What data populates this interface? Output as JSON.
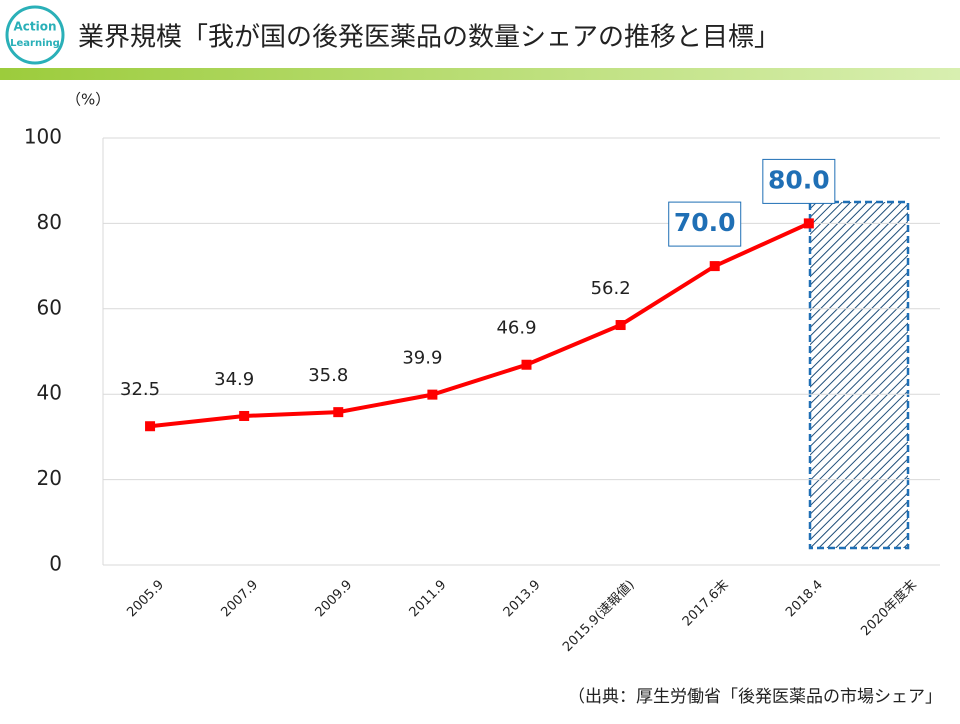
{
  "header": {
    "logo": [
      "Action",
      "Learning"
    ],
    "title": "業界規模「我が国の後発医薬品の数量シェアの推移と目標」"
  },
  "chart_data": {
    "type": "line",
    "unit": "（%）",
    "categories": [
      "2005.9",
      "2007.9",
      "2009.9",
      "2011.9",
      "2013.9",
      "2015.9(速報値)",
      "2017.6末",
      "2018.4",
      "2020年度末"
    ],
    "series": [
      {
        "color": "#ff0000",
        "values": [
          32.5,
          34.9,
          35.8,
          39.9,
          46.9,
          56.2,
          70.0,
          80.0,
          null
        ],
        "value_labels": [
          "32.5",
          "34.9",
          "35.8",
          "39.9",
          "46.9",
          "56.2",
          "70.0",
          "80.0",
          null
        ],
        "value_label_colors": [
          "#222222",
          "#222222",
          "#222222",
          "#222222",
          "#222222",
          "#222222",
          "#1f6fb5",
          "#1f6fb5",
          null
        ]
      }
    ],
    "ylim": [
      0,
      100
    ],
    "yticks": [
      0,
      20,
      40,
      60,
      80,
      100
    ],
    "grid": true,
    "source": "（出典：厚生労働省「後発医薬品の市場シェア」"
  }
}
